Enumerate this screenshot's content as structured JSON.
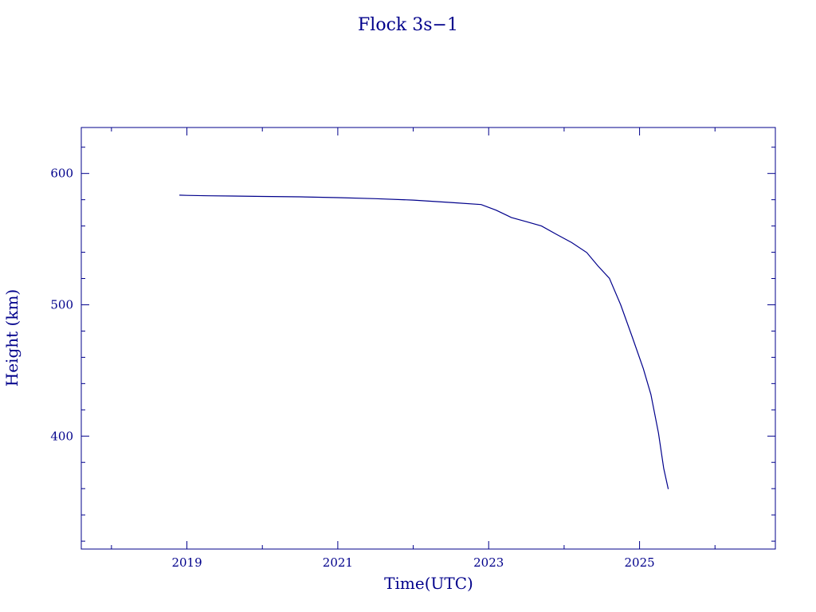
{
  "chart_data": {
    "type": "line",
    "title": "Flock 3s−1",
    "xlabel": "Time(UTC)",
    "ylabel": "Height (km)",
    "xlim": [
      2017.6,
      2026.8
    ],
    "ylim": [
      314,
      635
    ],
    "x_ticks": [
      2019,
      2021,
      2023,
      2025
    ],
    "y_ticks": [
      400,
      500,
      600
    ],
    "grid": false,
    "series": [
      {
        "x": [
          2018.9,
          2019.0,
          2019.3,
          2019.6,
          2020.0,
          2020.5,
          2021.0,
          2021.5,
          2022.0,
          2022.5,
          2022.9,
          2023.1,
          2023.3,
          2023.5,
          2023.7,
          2023.9,
          2024.1,
          2024.3,
          2024.45,
          2024.6,
          2024.75,
          2024.9,
          2025.05,
          2025.15,
          2025.25,
          2025.32,
          2025.38
        ],
        "y": [
          583.5,
          583.3,
          583,
          582.8,
          582.5,
          582.2,
          581.6,
          580.8,
          579.7,
          577.9,
          576.3,
          572,
          566.5,
          563.3,
          560,
          553.6,
          547.4,
          539.8,
          529.5,
          520.2,
          500,
          476,
          451.4,
          431.8,
          402.4,
          375.4,
          359.7
        ]
      }
    ]
  }
}
